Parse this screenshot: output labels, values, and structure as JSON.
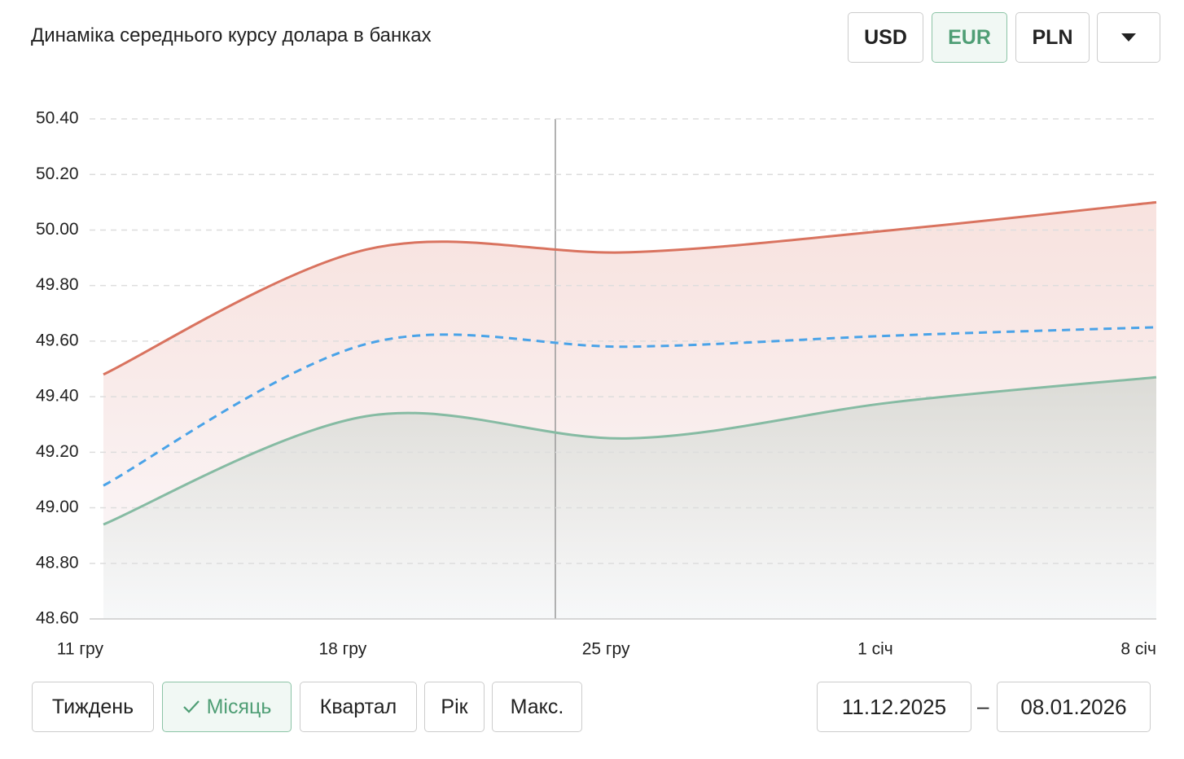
{
  "header": {
    "title": "Динаміка середнього курсу долара в банках",
    "currencies": [
      "USD",
      "EUR",
      "PLN"
    ],
    "active_currency": 1
  },
  "chart_data": {
    "type": "line",
    "categories": [
      "11 гру",
      "18 гру",
      "25 гру",
      "1 січ",
      "8 січ"
    ],
    "series": [
      {
        "color": "#d9735f",
        "dashed": false,
        "fill": true,
        "values": [
          49.48,
          49.93,
          49.92,
          50.0,
          50.1
        ]
      },
      {
        "color": "#4aa3e8",
        "dashed": true,
        "fill": false,
        "values": [
          49.08,
          49.59,
          49.58,
          49.62,
          49.65
        ]
      },
      {
        "color": "#86bba3",
        "dashed": false,
        "fill": true,
        "values": [
          48.94,
          49.33,
          49.25,
          49.38,
          49.47
        ]
      }
    ],
    "ylim": [
      48.6,
      50.4
    ],
    "yticks": [
      {
        "value": 48.6,
        "label": "48.60"
      },
      {
        "value": 48.8,
        "label": "48.80"
      },
      {
        "value": 49,
        "label": "49.00"
      },
      {
        "value": 49.2,
        "label": "49.20"
      },
      {
        "value": 49.4,
        "label": "49.40"
      },
      {
        "value": 49.6,
        "label": "49.60"
      },
      {
        "value": 49.8,
        "label": "49.80"
      },
      {
        "value": 50,
        "label": "50.00"
      },
      {
        "value": 50.2,
        "label": "50.20"
      },
      {
        "value": 50.4,
        "label": "50.40"
      }
    ],
    "grid": true
  },
  "periods": {
    "items": [
      "Тиждень",
      "Місяць",
      "Квартал",
      "Рік",
      "Макс."
    ],
    "active": 1
  },
  "date_range": {
    "from": "11.12.2025",
    "separator": "–",
    "to": "08.01.2026"
  }
}
